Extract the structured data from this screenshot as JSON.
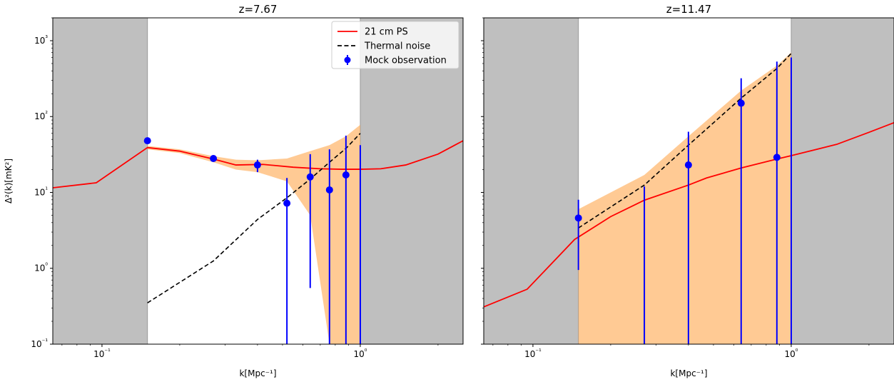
{
  "chart_data": [
    {
      "type": "line",
      "title": "z=7.67",
      "xlabel": "k[Mpc⁻¹]",
      "ylabel": "Δ²(k)[mK²]",
      "xscale": "log",
      "yscale": "log",
      "xlim": [
        0.0645,
        2.5
      ],
      "ylim": [
        0.1,
        2000
      ],
      "excluded_regions": [
        [
          0.0645,
          0.15
        ],
        [
          1.0,
          2.5
        ]
      ],
      "x_tick_labels": [
        {
          "value": 0.1,
          "label": "10⁻¹"
        },
        {
          "value": 1,
          "label": "10⁰"
        }
      ],
      "y_tick_labels": [
        {
          "value": 0.1,
          "label": "10⁻¹"
        },
        {
          "value": 1,
          "label": "10⁰"
        },
        {
          "value": 10,
          "label": "10¹"
        },
        {
          "value": 100,
          "label": "10²"
        },
        {
          "value": 1000,
          "label": "10³"
        }
      ],
      "legend": {
        "placement": "top-right",
        "entries": [
          {
            "label": "21 cm PS",
            "style": "solid",
            "color": "#ff0000"
          },
          {
            "label": "Thermal noise",
            "style": "dashed",
            "color": "#000000"
          },
          {
            "label": "Mock observation",
            "style": "errorbar",
            "color": "#0000ff"
          }
        ]
      },
      "series": [
        {
          "name": "21 cm PS",
          "style": "solid",
          "color": "#ff0000",
          "x": [
            0.0645,
            0.095,
            0.15,
            0.2,
            0.27,
            0.33,
            0.42,
            0.55,
            0.7,
            0.85,
            1.0,
            1.2,
            1.5,
            2.0,
            2.5
          ],
          "y": [
            11.5,
            13.4,
            39.0,
            35.0,
            27.5,
            23.0,
            23.4,
            21.5,
            20.5,
            20.2,
            20.2,
            20.5,
            23.0,
            32.0,
            48.0
          ]
        },
        {
          "name": "Thermal noise",
          "style": "dashed",
          "color": "#000000",
          "x": [
            0.15,
            0.27,
            0.4,
            0.52,
            0.64,
            0.76,
            0.88,
            1.0
          ],
          "y": [
            0.35,
            1.25,
            4.4,
            8.5,
            15.0,
            25.0,
            38.0,
            60.0
          ]
        },
        {
          "name": "Mock observation",
          "type": "errorbar",
          "color": "#0000ff",
          "x": [
            0.15,
            0.27,
            0.4,
            0.52,
            0.64,
            0.76,
            0.88,
            1.0
          ],
          "y": [
            48.0,
            28.0,
            23.0,
            7.2,
            16.0,
            10.8,
            17.0,
            null
          ],
          "y_low": [
            48.0,
            28.0,
            18.5,
            0.1,
            0.55,
            0.1,
            0.1,
            0.1
          ],
          "y_high": [
            48.0,
            28.0,
            27.0,
            15.5,
            32.0,
            37.0,
            56.0,
            42.0
          ]
        }
      ],
      "band": {
        "color": "#ffa64d",
        "opacity": 0.6,
        "x": [
          0.15,
          0.2,
          0.27,
          0.33,
          0.4,
          0.52,
          0.64,
          0.76,
          0.88,
          1.0
        ],
        "lower": [
          37.0,
          33.0,
          25.0,
          20.0,
          18.5,
          14.0,
          5.0,
          0.1,
          0.1,
          0.1
        ],
        "upper": [
          41.0,
          37.0,
          30.0,
          27.0,
          26.5,
          28.0,
          35.0,
          42.0,
          55.0,
          78.0
        ]
      }
    },
    {
      "type": "line",
      "title": "z=11.47",
      "xlabel": "k[Mpc⁻¹]",
      "ylabel": "",
      "xscale": "log",
      "yscale": "log",
      "xlim": [
        0.0645,
        2.5
      ],
      "ylim": [
        0.1,
        2000
      ],
      "excluded_regions": [
        [
          0.0645,
          0.15
        ],
        [
          1.0,
          2.5
        ]
      ],
      "x_tick_labels": [
        {
          "value": 0.1,
          "label": "10⁻¹"
        },
        {
          "value": 1,
          "label": "10⁰"
        }
      ],
      "y_tick_labels": [],
      "series": [
        {
          "name": "21 cm PS",
          "style": "solid",
          "color": "#ff0000",
          "x": [
            0.0645,
            0.095,
            0.145,
            0.2,
            0.27,
            0.4,
            0.47,
            0.64,
            0.88,
            1.0,
            1.5,
            2.0,
            2.5
          ],
          "y": [
            0.31,
            0.53,
            2.4,
            4.8,
            7.9,
            12.5,
            15.5,
            21.0,
            27.5,
            30.5,
            43.0,
            62.0,
            83.0
          ]
        },
        {
          "name": "Thermal noise",
          "style": "dashed",
          "color": "#000000",
          "x": [
            0.15,
            0.27,
            0.4,
            0.64,
            0.88,
            1.0
          ],
          "y": [
            3.4,
            12.5,
            42.0,
            175.0,
            430.0,
            680.0
          ]
        },
        {
          "name": "Mock observation",
          "type": "errorbar",
          "color": "#0000ff",
          "x": [
            0.15,
            0.27,
            0.4,
            0.64,
            0.88,
            1.0
          ],
          "y": [
            4.6,
            null,
            23.0,
            150.0,
            29.0,
            null
          ],
          "y_low": [
            0.95,
            0.1,
            0.1,
            0.1,
            0.1,
            0.1
          ],
          "y_high": [
            8.0,
            12.0,
            63.0,
            320.0,
            530.0,
            600.0
          ]
        }
      ],
      "band": {
        "color": "#ffa64d",
        "opacity": 0.6,
        "x": [
          0.15,
          0.27,
          0.4,
          0.64,
          0.88,
          1.0
        ],
        "lower": [
          0.1,
          0.1,
          0.1,
          0.1,
          0.1,
          0.1
        ],
        "upper": [
          6.0,
          17.0,
          55.0,
          220.0,
          470.0,
          700.0
        ]
      }
    }
  ]
}
